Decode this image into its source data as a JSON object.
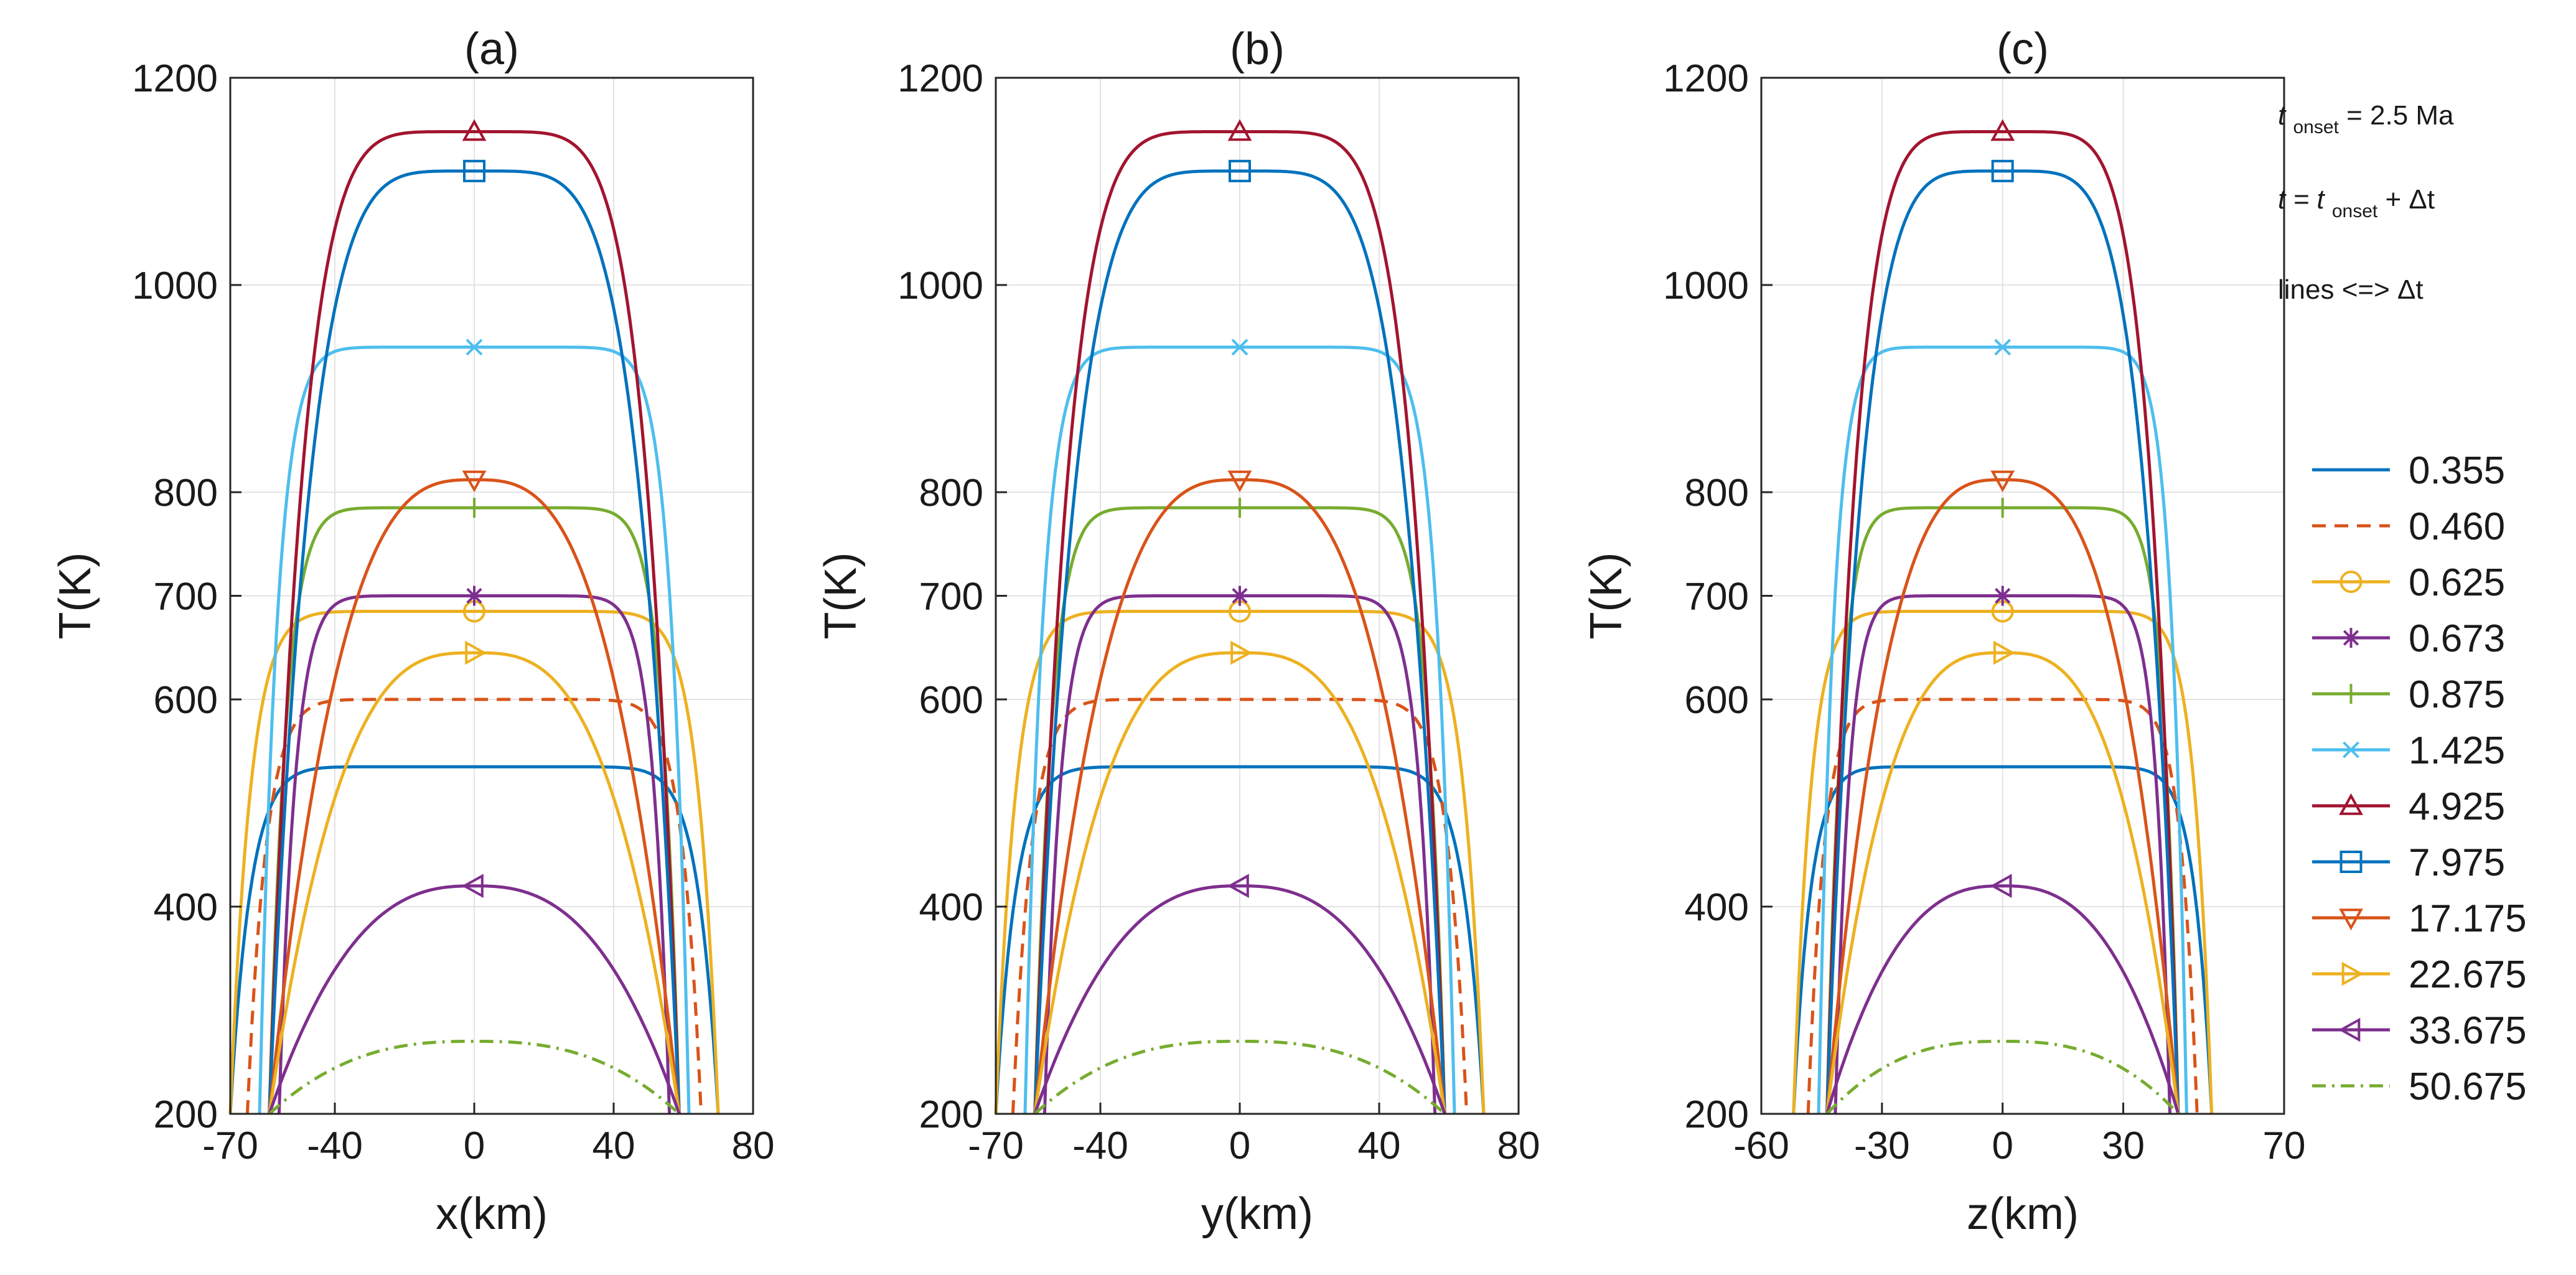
{
  "figure": {
    "annotations": {
      "onset_main": "t",
      "onset_sub": "onset",
      "onset_value": " = 2.5 Ma",
      "time_main_1": "t = t",
      "time_sub": "onset",
      "time_main_2": " + Δt",
      "lines_label": "lines <=> Δt"
    }
  },
  "chart_data": [
    {
      "type": "line",
      "panel": "a",
      "title": "(a)",
      "xlabel": "x(km)",
      "ylabel": "T(K)",
      "xlim": [
        -70,
        80
      ],
      "xticks": [
        -70,
        -40,
        0,
        40,
        80
      ],
      "ylim": [
        200,
        1200
      ],
      "yticks": [
        200,
        400,
        600,
        700,
        800,
        1000,
        1200
      ],
      "grid": true,
      "half_width": 70
    },
    {
      "type": "line",
      "panel": "b",
      "title": "(b)",
      "xlabel": "y(km)",
      "ylabel": "T(K)",
      "xlim": [
        -70,
        80
      ],
      "xticks": [
        -70,
        -40,
        0,
        40,
        80
      ],
      "ylim": [
        200,
        1200
      ],
      "yticks": [
        200,
        400,
        600,
        700,
        800,
        1000,
        1200
      ],
      "grid": true,
      "half_width": 70
    },
    {
      "type": "line",
      "panel": "c",
      "title": "(c)",
      "xlabel": "z(km)",
      "ylabel": "T(K)",
      "xlim": [
        -60,
        70
      ],
      "xticks": [
        -60,
        -30,
        0,
        30,
        70
      ],
      "ylim": [
        200,
        1200
      ],
      "yticks": [
        200,
        400,
        600,
        700,
        800,
        1000,
        1200
      ],
      "grid": true,
      "half_width": 52
    }
  ],
  "series": [
    {
      "name": "0.355",
      "color": "#0072BD",
      "dash": "solid",
      "marker": "none",
      "peak": 535,
      "edge": 1.0,
      "flat": 6
    },
    {
      "name": "0.460",
      "color": "#D95319",
      "dash": "dashed",
      "marker": "none",
      "peak": 600,
      "edge": 0.93,
      "flat": 6
    },
    {
      "name": "0.625",
      "color": "#EDB120",
      "dash": "solid",
      "marker": "circle",
      "peak": 685,
      "edge": 1.0,
      "flat": 6
    },
    {
      "name": "0.673",
      "color": "#7E2F8E",
      "dash": "solid",
      "marker": "asterisk",
      "peak": 700,
      "edge": 0.8,
      "flat": 6
    },
    {
      "name": "0.875",
      "color": "#77AC30",
      "dash": "solid",
      "marker": "plus",
      "peak": 785,
      "edge": 0.84,
      "flat": 6
    },
    {
      "name": "1.425",
      "color": "#4DBEEE",
      "dash": "solid",
      "marker": "x",
      "peak": 940,
      "edge": 0.88,
      "flat": 6
    },
    {
      "name": "4.925",
      "color": "#A2142F",
      "dash": "solid",
      "marker": "triangle-up",
      "peak": 1148,
      "edge": 0.84,
      "flat": 3
    },
    {
      "name": "7.975",
      "color": "#0072BD",
      "dash": "solid",
      "marker": "square",
      "peak": 1110,
      "edge": 0.84,
      "flat": 2.5
    },
    {
      "name": "17.175",
      "color": "#D95319",
      "dash": "solid",
      "marker": "triangle-down",
      "peak": 812,
      "edge": 0.84,
      "flat": 1.5
    },
    {
      "name": "22.675",
      "color": "#EDB120",
      "dash": "solid",
      "marker": "triangle-right",
      "peak": 645,
      "edge": 0.84,
      "flat": 1.5
    },
    {
      "name": "33.675",
      "color": "#7E2F8E",
      "dash": "solid",
      "marker": "triangle-left",
      "peak": 420,
      "edge": 0.84,
      "flat": 1.3
    },
    {
      "name": "50.675",
      "color": "#77AC30",
      "dash": "dashdot",
      "marker": "none",
      "peak": 270,
      "edge": 0.84,
      "flat": 1.3
    }
  ]
}
